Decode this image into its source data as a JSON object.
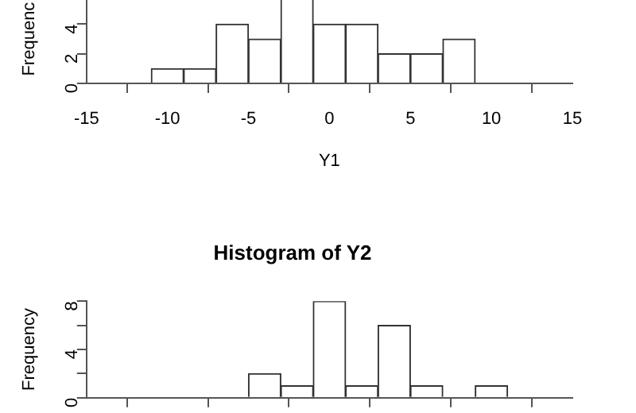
{
  "chart_data": [
    {
      "type": "histogram",
      "xlabel": "Y1",
      "ylabel": "Frequenc",
      "color": "#ffffff",
      "bins": [
        -15,
        -13,
        -11,
        -9,
        -7,
        -5,
        -3,
        -1,
        1,
        3,
        5,
        7,
        9,
        11,
        13,
        15
      ],
      "values": [
        0,
        0,
        1,
        1,
        4,
        3,
        6,
        4,
        4,
        2,
        2,
        3,
        0,
        0,
        0
      ],
      "xlim": [
        -15,
        15
      ],
      "xticks": [
        -15,
        -10,
        -5,
        0,
        5,
        10,
        15
      ],
      "ylim": [
        0,
        6
      ],
      "yticks": [
        0,
        2,
        4
      ]
    },
    {
      "type": "histogram",
      "title": "Histogram of Y2",
      "ylabel": "Frequency",
      "color": "#ffffff",
      "bins": [
        -15,
        -13,
        -11,
        -9,
        -7,
        -5,
        -3,
        -1,
        1,
        3,
        5,
        7,
        9,
        11,
        13,
        15
      ],
      "values": [
        0,
        0,
        0,
        0,
        0,
        2,
        1,
        8,
        1,
        6,
        1,
        0,
        1,
        0,
        0
      ],
      "xlim": [
        -15,
        15
      ],
      "xticks": [
        -15,
        -10,
        -5,
        0,
        5,
        10,
        15
      ],
      "ylim": [
        0,
        8
      ],
      "yticks": [
        0,
        {
          "value": 2,
          "label": null
        },
        4,
        {
          "value": 6,
          "label": null
        },
        8
      ],
      "tick_labels": "y"
    }
  ]
}
